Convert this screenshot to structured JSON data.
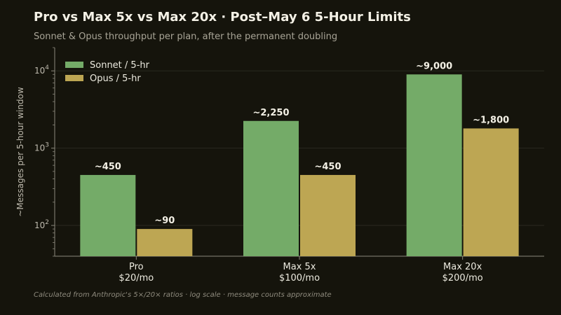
{
  "page": {
    "title": "Pro vs Max 5x vs Max 20x · Post–May 6 5-Hour Limits",
    "subtitle": "Sonnet & Opus throughput per plan, after the permanent doubling",
    "footnote": "Calculated from Anthropic's 5×/20× ratios · log scale · message counts approximate"
  },
  "chart_data": {
    "type": "bar",
    "title": "Pro vs Max 5x vs Max 20x · Post–May 6 5-Hour Limits",
    "subtitle": "Sonnet & Opus throughput per plan, after the permanent doubling",
    "ylabel": "~Messages per 5-hour window",
    "xlabel": "",
    "y_scale": "log",
    "ylim": [
      40,
      20000
    ],
    "y_ticks": [
      {
        "value": 100,
        "base": "10",
        "exp": "2"
      },
      {
        "value": 1000,
        "base": "10",
        "exp": "3"
      },
      {
        "value": 10000,
        "base": "10",
        "exp": "4"
      }
    ],
    "categories": [
      {
        "line1": "Pro",
        "line2": "$20/mo"
      },
      {
        "line1": "Max 5x",
        "line2": "$100/mo"
      },
      {
        "line1": "Max 20x",
        "line2": "$200/mo"
      }
    ],
    "series": [
      {
        "name": "Sonnet / 5-hr",
        "color": "#74ab68",
        "values": [
          450,
          2250,
          9000
        ],
        "labels": [
          "~450",
          "~2,250",
          "~9,000"
        ]
      },
      {
        "name": "Opus / 5-hr",
        "color": "#bda653",
        "values": [
          90,
          450,
          1800
        ],
        "labels": [
          "~90",
          "~450",
          "~1,800"
        ]
      }
    ],
    "legend": "top-left",
    "grid": "horizontal"
  }
}
